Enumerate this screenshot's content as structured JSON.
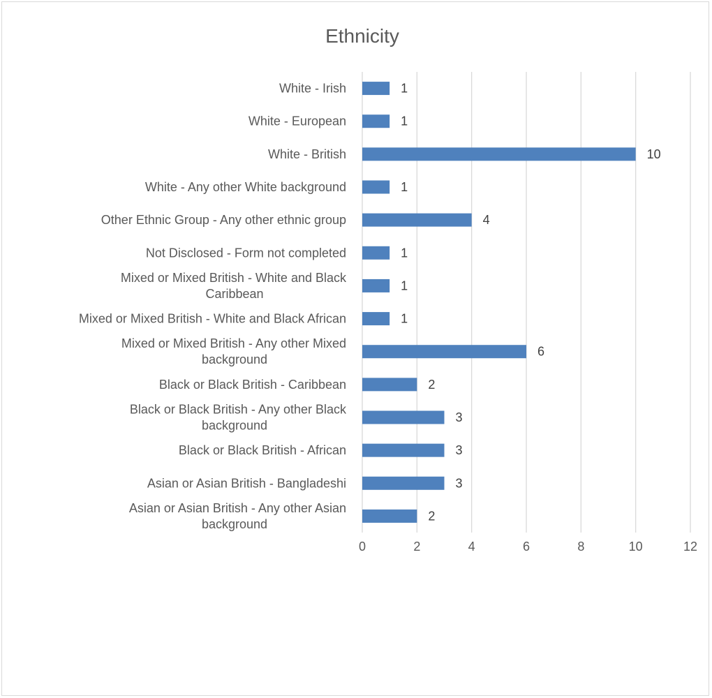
{
  "chart_data": {
    "type": "bar",
    "orientation": "horizontal",
    "title": "Ethnicity",
    "categories": [
      "White - Irish",
      "White - European",
      "White - British",
      "White - Any other White background",
      "Other Ethnic Group - Any other ethnic group",
      "Not Disclosed - Form not completed",
      "Mixed or Mixed British - White and Black Caribbean",
      "Mixed or Mixed British - White and Black African",
      "Mixed or Mixed British - Any other Mixed background",
      "Black or Black British - Caribbean",
      "Black or Black British - Any other Black background",
      "Black or Black British - African",
      "Asian or Asian British - Bangladeshi",
      "Asian or Asian British - Any other Asian background"
    ],
    "category_lines": [
      [
        "White - Irish"
      ],
      [
        "White - European"
      ],
      [
        "White - British"
      ],
      [
        "White - Any other White background"
      ],
      [
        "Other Ethnic Group - Any other ethnic group"
      ],
      [
        "Not Disclosed - Form not completed"
      ],
      [
        "Mixed or Mixed British - White and Black",
        "Caribbean"
      ],
      [
        "Mixed or Mixed British - White and Black African"
      ],
      [
        "Mixed or Mixed British - Any other Mixed",
        "background"
      ],
      [
        "Black or Black British - Caribbean"
      ],
      [
        "Black or Black British - Any other Black",
        "background"
      ],
      [
        "Black or Black British - African"
      ],
      [
        "Asian or Asian British - Bangladeshi"
      ],
      [
        "Asian or Asian British - Any other Asian",
        "background"
      ]
    ],
    "values": [
      1,
      1,
      10,
      1,
      4,
      1,
      1,
      1,
      6,
      2,
      3,
      3,
      3,
      2
    ],
    "xlim": [
      0,
      12
    ],
    "xticks": [
      0,
      2,
      4,
      6,
      8,
      10,
      12
    ],
    "xlabel": "",
    "ylabel": "",
    "grid": true,
    "legend": "none",
    "data_labels": true,
    "bar_color": "#4f81bd"
  }
}
